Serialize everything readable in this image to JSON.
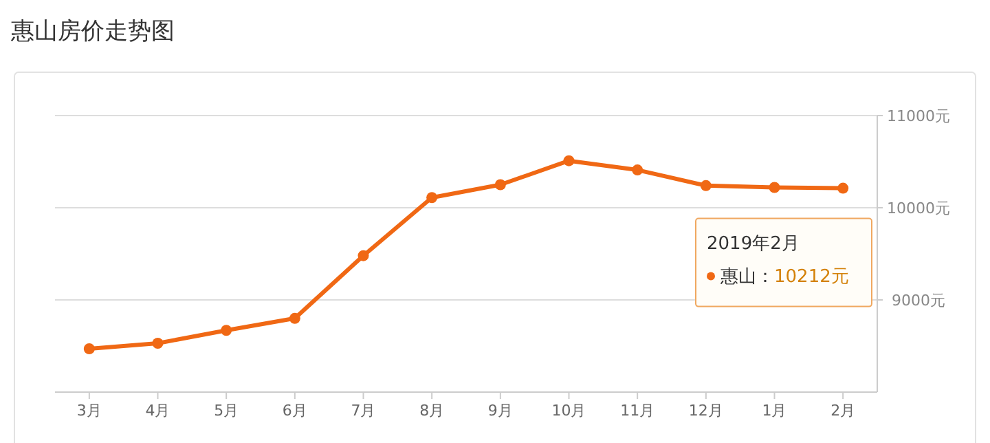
{
  "chart_data": {
    "type": "line",
    "title": "惠山房价走势图",
    "categories": [
      "3月",
      "4月",
      "5月",
      "6月",
      "7月",
      "8月",
      "9月",
      "10月",
      "11月",
      "12月",
      "1月",
      "2月"
    ],
    "series": [
      {
        "color": "#f06814",
        "values": [
          8470,
          8530,
          8670,
          8800,
          9480,
          10110,
          10250,
          10510,
          10410,
          10240,
          10220,
          10212
        ]
      }
    ],
    "ylim": [
      8000,
      11000
    ],
    "yticks": [
      {
        "value": 9000,
        "label": "9000元"
      },
      {
        "value": 10000,
        "label": "10000元"
      },
      {
        "value": 11000,
        "label": "11000元"
      }
    ],
    "grid": "y",
    "marker": "circle",
    "line_style": "solid",
    "annotations": [
      "2019年2月",
      "惠山：10212元"
    ]
  }
}
